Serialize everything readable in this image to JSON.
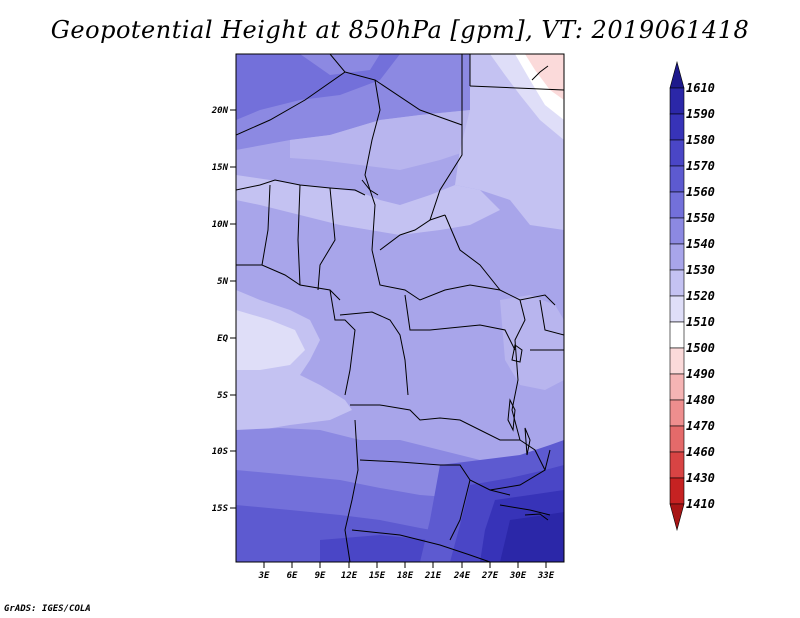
{
  "title": "Geopotential Height at 850hPa [gpm], VT: 2019061418",
  "credit": "GrADS: IGES/COLA",
  "map": {
    "lat_labels": [
      "20N",
      "15N",
      "10N",
      "5N",
      "EQ",
      "5S",
      "10S",
      "15S"
    ],
    "lon_labels": [
      "3E",
      "6E",
      "9E",
      "12E",
      "15E",
      "18E",
      "21E",
      "24E",
      "27E",
      "30E",
      "33E"
    ]
  },
  "colorbar": {
    "labels": [
      "1610",
      "1590",
      "1580",
      "1570",
      "1560",
      "1550",
      "1540",
      "1530",
      "1520",
      "1510",
      "1500",
      "1490",
      "1480",
      "1470",
      "1460",
      "1430",
      "1410"
    ],
    "colors": [
      "#1e1a8c",
      "#2b27a8",
      "#3733b8",
      "#4a46c6",
      "#5d5ad0",
      "#7370da",
      "#8c89e2",
      "#a8a5ea",
      "#c4c2f2",
      "#dfdef8",
      "#ffffff",
      "#fbdada",
      "#f5b4b4",
      "#ee8e8e",
      "#e46a6a",
      "#d84444",
      "#c62222",
      "#a81515"
    ]
  }
}
